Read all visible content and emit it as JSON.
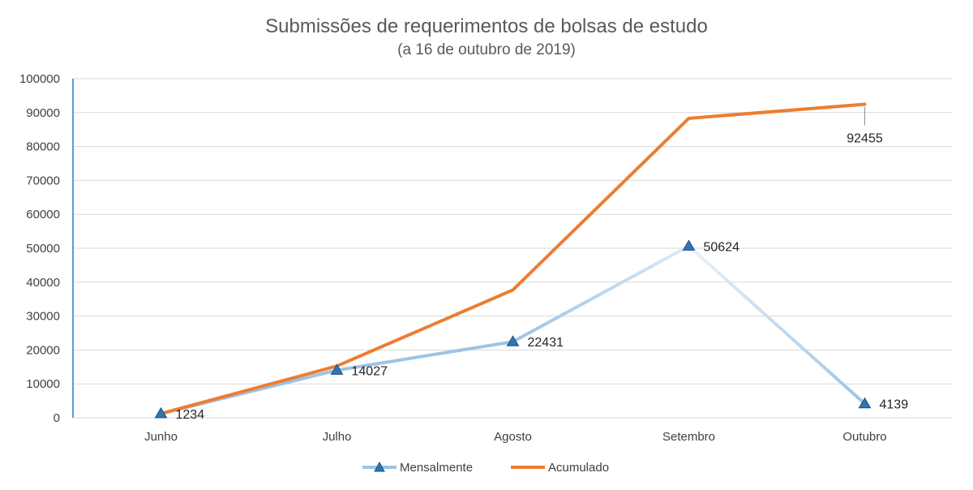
{
  "chart_data": {
    "type": "line",
    "title": "Submissões de requerimentos de bolsas de estudo",
    "subtitle": "(a 16 de outubro de 2019)",
    "categories": [
      "Junho",
      "Julho",
      "Agosto",
      "Setembro",
      "Outubro"
    ],
    "ylim": [
      0,
      100000
    ],
    "y_ticks": [
      0,
      10000,
      20000,
      30000,
      40000,
      50000,
      60000,
      70000,
      80000,
      90000,
      100000
    ],
    "y_tick_labels": [
      "0",
      "10000",
      "20000",
      "30000",
      "40000",
      "50000",
      "60000",
      "70000",
      "80000",
      "90000",
      "100000"
    ],
    "grid": true,
    "legend_position": "bottom",
    "series": [
      {
        "name": "Mensalmente",
        "color": "#9dc3e6",
        "marker": "triangle",
        "marker_color": "#2e75b6",
        "values": [
          1234,
          14027,
          22431,
          50624,
          4139
        ],
        "labels": [
          "1234",
          "14027",
          "22431",
          "50624",
          "4139"
        ]
      },
      {
        "name": "Acumulado",
        "color": "#ed7d31",
        "marker": "none",
        "values": [
          1234,
          15261,
          37692,
          88316,
          92455
        ],
        "labels": [
          "",
          "",
          "",
          "",
          "92455"
        ]
      }
    ]
  }
}
